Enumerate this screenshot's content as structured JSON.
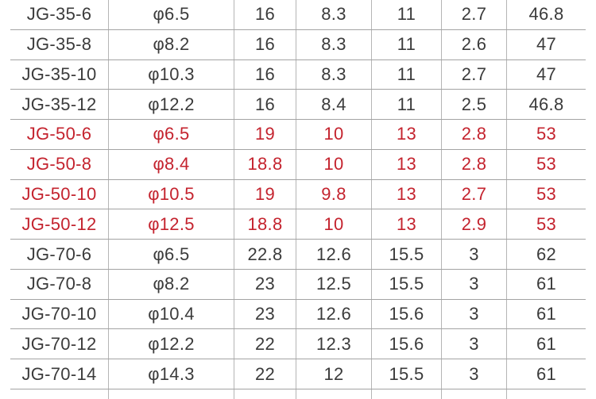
{
  "colors": {
    "background": "#ffffff",
    "text_dark": "#3b3b3b",
    "text_red": "#c4232e",
    "horizontal_rule": "#a3a3a3",
    "vertical_rule": "#b5b5b5"
  },
  "table": {
    "rows": [
      {
        "style": "dark",
        "cells": [
          "JG-35-6",
          "φ6.5",
          "16",
          "8.3",
          "11",
          "2.7",
          "46.8"
        ]
      },
      {
        "style": "dark",
        "cells": [
          "JG-35-8",
          "φ8.2",
          "16",
          "8.3",
          "11",
          "2.6",
          "47"
        ]
      },
      {
        "style": "dark",
        "cells": [
          "JG-35-10",
          "φ10.3",
          "16",
          "8.3",
          "11",
          "2.7",
          "47"
        ]
      },
      {
        "style": "dark",
        "cells": [
          "JG-35-12",
          "φ12.2",
          "16",
          "8.4",
          "11",
          "2.5",
          "46.8"
        ]
      },
      {
        "style": "red",
        "cells": [
          "JG-50-6",
          "φ6.5",
          "19",
          "10",
          "13",
          "2.8",
          "53"
        ]
      },
      {
        "style": "red",
        "cells": [
          "JG-50-8",
          "φ8.4",
          "18.8",
          "10",
          "13",
          "2.8",
          "53"
        ]
      },
      {
        "style": "red",
        "cells": [
          "JG-50-10",
          "φ10.5",
          "19",
          "9.8",
          "13",
          "2.7",
          "53"
        ]
      },
      {
        "style": "red",
        "cells": [
          "JG-50-12",
          "φ12.5",
          "18.8",
          "10",
          "13",
          "2.9",
          "53"
        ]
      },
      {
        "style": "dark",
        "cells": [
          "JG-70-6",
          "φ6.5",
          "22.8",
          "12.6",
          "15.5",
          "3",
          "62"
        ]
      },
      {
        "style": "dark",
        "cells": [
          "JG-70-8",
          "φ8.2",
          "23",
          "12.5",
          "15.5",
          "3",
          "61"
        ]
      },
      {
        "style": "dark",
        "cells": [
          "JG-70-10",
          "φ10.4",
          "23",
          "12.6",
          "15.6",
          "3",
          "61"
        ]
      },
      {
        "style": "dark",
        "cells": [
          "JG-70-12",
          "φ12.2",
          "22",
          "12.3",
          "15.6",
          "3",
          "61"
        ]
      },
      {
        "style": "dark",
        "cells": [
          "JG-70-14",
          "φ14.3",
          "22",
          "12",
          "15.5",
          "3",
          "61"
        ]
      }
    ]
  }
}
